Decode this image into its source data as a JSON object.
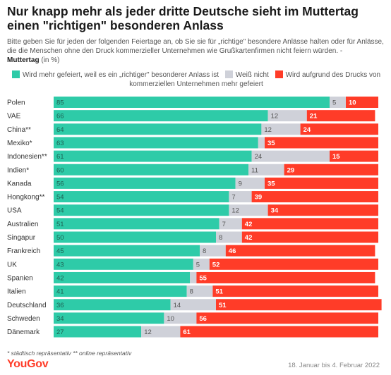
{
  "header": {
    "title": "Nur knapp mehr als jeder dritte Deutsche sieht im Muttertag einen \"richtigen\" besonderen Anlass",
    "question": "Bitte geben Sie für jeden der folgenden Feiertage an, ob Sie sie für „richtige\" besondere Anlässe halten oder für Anlässe, die die Menschen ohne den Druck kommerzieller Unternehmen wie Grußkartenfirmen nicht feiern würden. -",
    "topic": "Muttertag",
    "unit": "(in %)"
  },
  "colors": {
    "green": "#2ecba8",
    "grey": "#cfd1d9",
    "red": "#ff3c28"
  },
  "chart_data": {
    "type": "bar",
    "stacked": true,
    "orientation": "horizontal",
    "xlim": [
      0,
      100
    ],
    "categories": [
      "Polen",
      "VAE",
      "China**",
      "Mexiko*",
      "Indonesien**",
      "Indien*",
      "Kanada",
      "Hongkong**",
      "USA",
      "Australien",
      "Singapur",
      "Frankreich",
      "UK",
      "Spanien",
      "Italien",
      "Deutschland",
      "Schweden",
      "Dänemark"
    ],
    "series": [
      {
        "name": "Wird mehr gefeiert, weil es ein „richtiger\" besonderer Anlass ist",
        "color": "#2ecba8",
        "values": [
          85,
          66,
          64,
          63,
          61,
          60,
          56,
          54,
          54,
          51,
          50,
          45,
          43,
          42,
          41,
          36,
          34,
          27
        ]
      },
      {
        "name": "Weiß nicht",
        "color": "#cfd1d9",
        "values": [
          5,
          12,
          12,
          2,
          24,
          11,
          9,
          7,
          12,
          7,
          8,
          8,
          5,
          2,
          8,
          14,
          10,
          12
        ]
      },
      {
        "name": "Wird aufgrund des Drucks von kommerziellen Unternehmen mehr gefeiert",
        "color": "#ff3c28",
        "values": [
          10,
          21,
          24,
          35,
          15,
          29,
          35,
          39,
          34,
          42,
          42,
          46,
          52,
          55,
          51,
          51,
          56,
          61
        ]
      }
    ],
    "value_labels": [
      [
        "85",
        "5",
        "10"
      ],
      [
        "66",
        "12",
        "21"
      ],
      [
        "64",
        "12",
        "24"
      ],
      [
        "63",
        "",
        "35"
      ],
      [
        "61",
        "24",
        "15"
      ],
      [
        "60",
        "11",
        "29"
      ],
      [
        "56",
        "9",
        "35"
      ],
      [
        "54",
        "7",
        "39"
      ],
      [
        "54",
        "12",
        "34"
      ],
      [
        "51",
        "7",
        "42"
      ],
      [
        "50",
        "8",
        "42"
      ],
      [
        "45",
        "8",
        "46"
      ],
      [
        "43",
        "5",
        "52"
      ],
      [
        "42",
        "",
        "55"
      ],
      [
        "41",
        "8",
        "51"
      ],
      [
        "36",
        "14",
        "51"
      ],
      [
        "34",
        "10",
        "56"
      ],
      [
        "27",
        "12",
        "61"
      ]
    ]
  },
  "footer": {
    "footnote": "* städtisch repräsentativ ** online repräsentativ",
    "logo": "YouGov",
    "date": "18. Januar bis 4. Februar 2022"
  }
}
